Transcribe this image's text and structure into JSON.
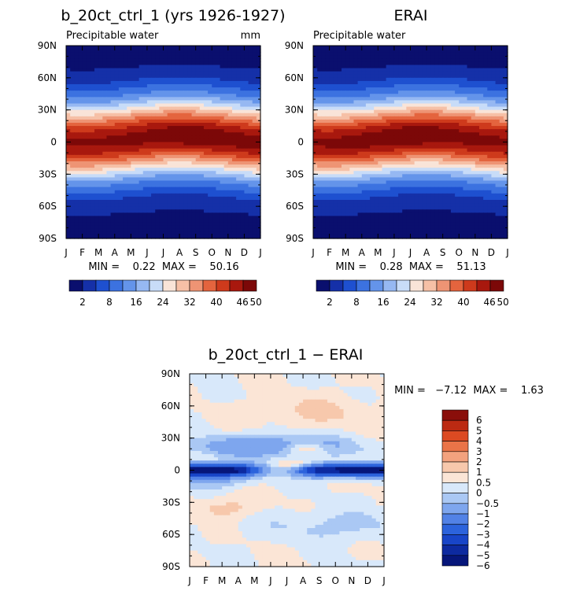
{
  "panels": [
    {
      "title": "b_20ct_ctrl_1 (yrs 1926-1927)",
      "subtitle": "Precipitable water",
      "units": "mm",
      "minmax_text": "MIN =    0.22  MAX =    50.16"
    },
    {
      "title": "ERAI",
      "subtitle": "Precipitable water",
      "units": "",
      "minmax_text": "MIN =    0.28  MAX =    51.13"
    },
    {
      "title": "b_20ct_ctrl_1 − ERAI",
      "minmax_text": "MIN =   −7.12  MAX =    1.63"
    }
  ],
  "chart_data": [
    {
      "type": "heatmap",
      "title": "b_20ct_ctrl_1 (yrs 1926-1927)",
      "subtitle": "Precipitable water",
      "units": "mm",
      "x_tick_labels": [
        "J",
        "F",
        "M",
        "A",
        "M",
        "J",
        "J",
        "A",
        "S",
        "O",
        "N",
        "D",
        "J"
      ],
      "y_tick_labels": [
        "90N",
        "60N",
        "30N",
        "0",
        "30S",
        "60S",
        "90S"
      ],
      "ylim": [
        -90,
        90
      ],
      "min": 0.22,
      "max": 50.16,
      "peak_lat": 5,
      "peak_month": 8,
      "colorbar_labels": [
        "2",
        "8",
        "16",
        "24",
        "32",
        "40",
        "46",
        "50"
      ]
    },
    {
      "type": "heatmap",
      "title": "ERAI",
      "subtitle": "Precipitable water",
      "x_tick_labels": [
        "J",
        "F",
        "M",
        "A",
        "M",
        "J",
        "J",
        "A",
        "S",
        "O",
        "N",
        "D",
        "J"
      ],
      "y_tick_labels": [
        "90N",
        "60N",
        "30N",
        "0",
        "30S",
        "60S",
        "90S"
      ],
      "ylim": [
        -90,
        90
      ],
      "min": 0.28,
      "max": 51.13,
      "peak_lat": 6,
      "peak_month": 6,
      "colorbar_labels": [
        "2",
        "8",
        "16",
        "24",
        "32",
        "40",
        "46",
        "50"
      ]
    },
    {
      "type": "heatmap",
      "title": "b_20ct_ctrl_1 − ERAI",
      "x_tick_labels": [
        "J",
        "F",
        "M",
        "A",
        "M",
        "J",
        "J",
        "A",
        "S",
        "O",
        "N",
        "D",
        "J"
      ],
      "y_tick_labels": [
        "90N",
        "60N",
        "30N",
        "0",
        "30S",
        "60S",
        "90S"
      ],
      "ylim": [
        -90,
        90
      ],
      "min": -7.12,
      "max": 1.63,
      "colorbar_labels": [
        "6",
        "5",
        "4",
        "3",
        "2",
        "1",
        "0.5",
        "0",
        "−0.5",
        "−1",
        "−2",
        "−3",
        "−4",
        "−5",
        "−6"
      ]
    }
  ],
  "colors": {
    "pw_scale": [
      "#0a0f6e",
      "#1530a8",
      "#1e50d0",
      "#3c72e0",
      "#6494ea",
      "#96b8f2",
      "#c8dcf8",
      "#f9e4d8",
      "#f6c0a6",
      "#ee9474",
      "#e4643e",
      "#ce3a1c",
      "#a8180e",
      "#7c0808"
    ],
    "diff_scale": [
      "#06167a",
      "#0d2aa0",
      "#1845c8",
      "#2c63dc",
      "#5282e6",
      "#7ea6ee",
      "#aac8f4",
      "#d8e8fa",
      "#fbe5d6",
      "#f7c8ac",
      "#f3a27e",
      "#ea7448",
      "#dc4a22",
      "#bc2a12",
      "#8a0e0a"
    ]
  }
}
